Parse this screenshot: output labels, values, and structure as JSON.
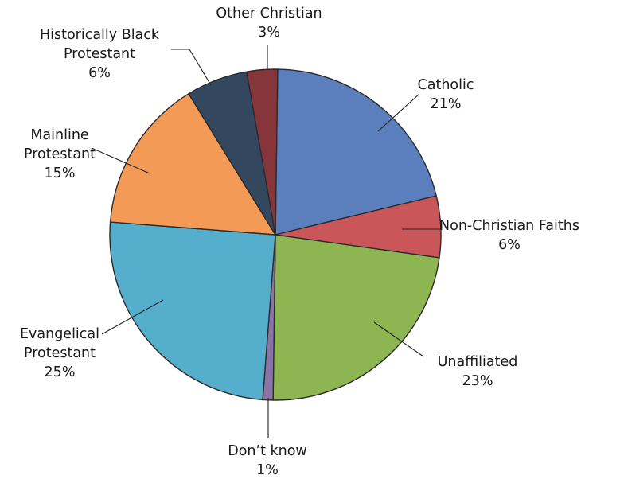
{
  "chart_data": {
    "type": "pie",
    "title": "",
    "slices": [
      {
        "name": "Catholic",
        "value": 21,
        "value_label": "21%",
        "color": "#5b7fbd"
      },
      {
        "name": "Non-Christian Faiths",
        "value": 6,
        "value_label": "6%",
        "color": "#c9575a"
      },
      {
        "name": "Unaffiliated",
        "value": 23,
        "value_label": "23%",
        "color": "#8db551"
      },
      {
        "name": "Don’t know",
        "value": 1,
        "value_label": "1%",
        "color": "#8a74a8"
      },
      {
        "name": "Evangelical Protestant",
        "value": 25,
        "value_label": "25%",
        "color": "#55aecb"
      },
      {
        "name": "Mainline Protestant",
        "value": 15,
        "value_label": "15%",
        "color": "#f49a57"
      },
      {
        "name": "Historically Black Protestant",
        "value": 6,
        "value_label": "6%",
        "color": "#33475f"
      },
      {
        "name": "Other Christian",
        "value": 3,
        "value_label": "3%",
        "color": "#86363b"
      }
    ],
    "labels": [
      {
        "lines": [
          "Catholic",
          "21%"
        ]
      },
      {
        "lines": [
          "Non-Christian Faiths",
          "6%"
        ]
      },
      {
        "lines": [
          "Unaffiliated",
          "23%"
        ]
      },
      {
        "lines": [
          "Don’t know",
          "1%"
        ]
      },
      {
        "lines": [
          "Evangelical",
          "Protestant",
          "25%"
        ]
      },
      {
        "lines": [
          "Mainline",
          "Protestant",
          "15%"
        ]
      },
      {
        "lines": [
          "Historically Black",
          "Protestant",
          "6%"
        ]
      },
      {
        "lines": [
          "Other Christian",
          "3%"
        ]
      }
    ]
  }
}
